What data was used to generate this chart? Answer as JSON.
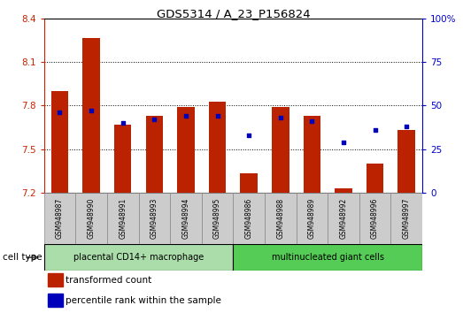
{
  "title": "GDS5314 / A_23_P156824",
  "samples": [
    "GSM948987",
    "GSM948990",
    "GSM948991",
    "GSM948993",
    "GSM948994",
    "GSM948995",
    "GSM948986",
    "GSM948988",
    "GSM948989",
    "GSM948992",
    "GSM948996",
    "GSM948997"
  ],
  "transformed_count": [
    7.9,
    8.27,
    7.67,
    7.73,
    7.79,
    7.83,
    7.33,
    7.79,
    7.73,
    7.23,
    7.4,
    7.63
  ],
  "percentile_rank": [
    46,
    47,
    40,
    42,
    44,
    44,
    33,
    43,
    41,
    29,
    36,
    38
  ],
  "ylim_left": [
    7.2,
    8.4
  ],
  "ylim_right": [
    0,
    100
  ],
  "yticks_left": [
    7.2,
    7.5,
    7.8,
    8.1,
    8.4
  ],
  "yticks_right": [
    0,
    25,
    50,
    75,
    100
  ],
  "grid_lines": [
    7.5,
    7.8,
    8.1
  ],
  "bar_color": "#bb2200",
  "dot_color": "#0000bb",
  "bar_base": 7.2,
  "group1_label": "placental CD14+ macrophage",
  "group2_label": "multinucleated giant cells",
  "group1_count": 6,
  "group2_count": 6,
  "cell_type_label": "cell type",
  "legend1": "transformed count",
  "legend2": "percentile rank within the sample",
  "group_bg1": "#aaddaa",
  "group_bg2": "#55cc55",
  "sample_bg": "#cccccc",
  "left_label_color": "#cc2200",
  "right_label_color": "#0000cc"
}
